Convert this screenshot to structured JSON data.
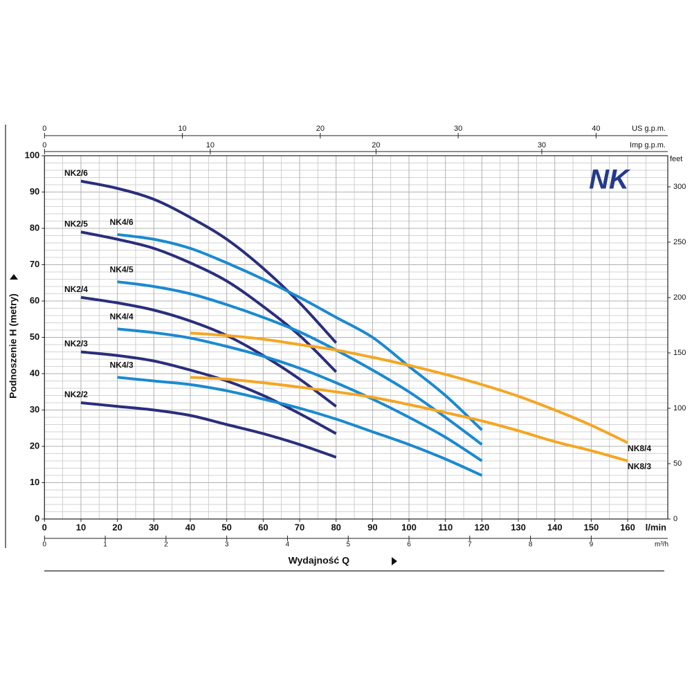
{
  "chart_data": {
    "type": "line",
    "logo": "NK",
    "xlabel": "Wydajność Q",
    "ylabel": "Podnoszenie H (metry)",
    "x_unit": "l/min",
    "xlim": [
      0,
      171
    ],
    "xticks": [
      0,
      10,
      20,
      30,
      40,
      50,
      60,
      70,
      80,
      90,
      100,
      110,
      120,
      130,
      140,
      150,
      160
    ],
    "xminorticks": [
      5,
      15,
      25,
      35,
      45,
      55,
      65,
      75,
      85,
      95,
      105,
      115,
      125,
      135,
      145,
      155,
      165
    ],
    "ylim": [
      0,
      100
    ],
    "yticks": [
      0,
      10,
      20,
      30,
      40,
      50,
      60,
      70,
      80,
      90,
      100
    ],
    "yminorticks": [
      2,
      4,
      6,
      8,
      12,
      14,
      16,
      18,
      22,
      24,
      26,
      28,
      32,
      34,
      36,
      38,
      42,
      44,
      46,
      48,
      52,
      54,
      56,
      58,
      62,
      64,
      66,
      68,
      72,
      74,
      76,
      78,
      82,
      84,
      86,
      88,
      92,
      94,
      96,
      98
    ],
    "grid": true,
    "secondary_axes": {
      "us_gpm": {
        "label": "US g.p.m.",
        "lim": [
          0,
          45.2
        ],
        "ticks": [
          0,
          10,
          20,
          30,
          40
        ]
      },
      "imp_gpm": {
        "label": "Imp g.p.m.",
        "lim": [
          0,
          37.6
        ],
        "ticks": [
          0,
          10,
          20,
          30
        ]
      },
      "m3h": {
        "label": "m³/h",
        "lim": [
          0,
          10.26
        ],
        "ticks": [
          0,
          1,
          2,
          3,
          4,
          5,
          6,
          7,
          8,
          9
        ]
      },
      "feet": {
        "label": "feet",
        "lim": [
          0,
          328.1
        ],
        "ticks": [
          0,
          50,
          100,
          150,
          200,
          250,
          300
        ]
      }
    },
    "series": [
      {
        "name": "NK2/6",
        "color": "#2a2e7c",
        "label_position": "start-left",
        "x": [
          10,
          20,
          30,
          40,
          50,
          60,
          70,
          80
        ],
        "values": [
          93,
          91,
          88,
          83,
          77,
          69,
          59.5,
          48.5
        ]
      },
      {
        "name": "NK2/5",
        "color": "#2a2e7c",
        "label_position": "start-left",
        "x": [
          10,
          20,
          30,
          40,
          50,
          60,
          70,
          80
        ],
        "values": [
          79,
          77,
          74.5,
          70.5,
          65.5,
          58.5,
          50.5,
          40.5
        ]
      },
      {
        "name": "NK2/4",
        "color": "#2a2e7c",
        "label_position": "start-left",
        "x": [
          10,
          20,
          30,
          40,
          50,
          60,
          70,
          80
        ],
        "values": [
          61,
          59.5,
          57.5,
          54.5,
          50.5,
          45,
          38.5,
          31
        ]
      },
      {
        "name": "NK2/3",
        "color": "#2a2e7c",
        "label_position": "start-left",
        "x": [
          10,
          20,
          30,
          40,
          50,
          60,
          70,
          80
        ],
        "values": [
          46,
          45,
          43.5,
          41,
          38,
          34,
          29,
          23.5
        ]
      },
      {
        "name": "NK2/2",
        "color": "#2a2e7c",
        "label_position": "start-left",
        "x": [
          10,
          20,
          30,
          40,
          50,
          60,
          70,
          80
        ],
        "values": [
          32,
          31,
          30,
          28.5,
          26,
          23.5,
          20.5,
          17
        ]
      },
      {
        "name": "NK4/6",
        "color": "#1a8ad0",
        "label_position": "start",
        "x": [
          20,
          30,
          40,
          50,
          60,
          70,
          80,
          90,
          100,
          110,
          120
        ],
        "values": [
          78.3,
          77,
          74.5,
          70.5,
          66,
          61,
          55.5,
          50,
          42,
          34,
          24.5
        ]
      },
      {
        "name": "NK4/5",
        "color": "#1a8ad0",
        "label_position": "start",
        "x": [
          20,
          30,
          40,
          50,
          60,
          70,
          80,
          90,
          100,
          110,
          120
        ],
        "values": [
          65.3,
          64,
          62,
          59,
          55.5,
          51.5,
          46.5,
          41,
          35,
          28,
          20.5
        ]
      },
      {
        "name": "NK4/4",
        "color": "#1a8ad0",
        "label_position": "start",
        "x": [
          20,
          30,
          40,
          50,
          60,
          70,
          80,
          90,
          100,
          110,
          120
        ],
        "values": [
          52.3,
          51.3,
          49.8,
          47.5,
          44.8,
          41.5,
          37.5,
          33,
          28,
          22.5,
          16
        ]
      },
      {
        "name": "NK4/3",
        "color": "#1a8ad0",
        "label_position": "start",
        "x": [
          20,
          30,
          40,
          50,
          60,
          70,
          80,
          90,
          100,
          110,
          120
        ],
        "values": [
          39,
          38,
          37,
          35.3,
          33,
          30.5,
          27.5,
          24,
          20.5,
          16.5,
          12
        ]
      },
      {
        "name": "NK8/4",
        "color": "#f5a623",
        "label_position": "end",
        "x": [
          40,
          50,
          60,
          70,
          80,
          90,
          100,
          110,
          120,
          130,
          140,
          150,
          160
        ],
        "values": [
          51.2,
          50.5,
          49.5,
          48,
          46.5,
          44.5,
          42.3,
          39.8,
          37,
          33.8,
          30,
          25.8,
          21
        ]
      },
      {
        "name": "NK8/3",
        "color": "#f5a623",
        "label_position": "end",
        "x": [
          40,
          50,
          60,
          70,
          80,
          90,
          100,
          110,
          120,
          130,
          140,
          150,
          160
        ],
        "values": [
          39,
          38.5,
          37.5,
          36.3,
          35,
          33.5,
          31.5,
          29.3,
          27,
          24.3,
          21.3,
          18.8,
          16
        ]
      }
    ]
  }
}
